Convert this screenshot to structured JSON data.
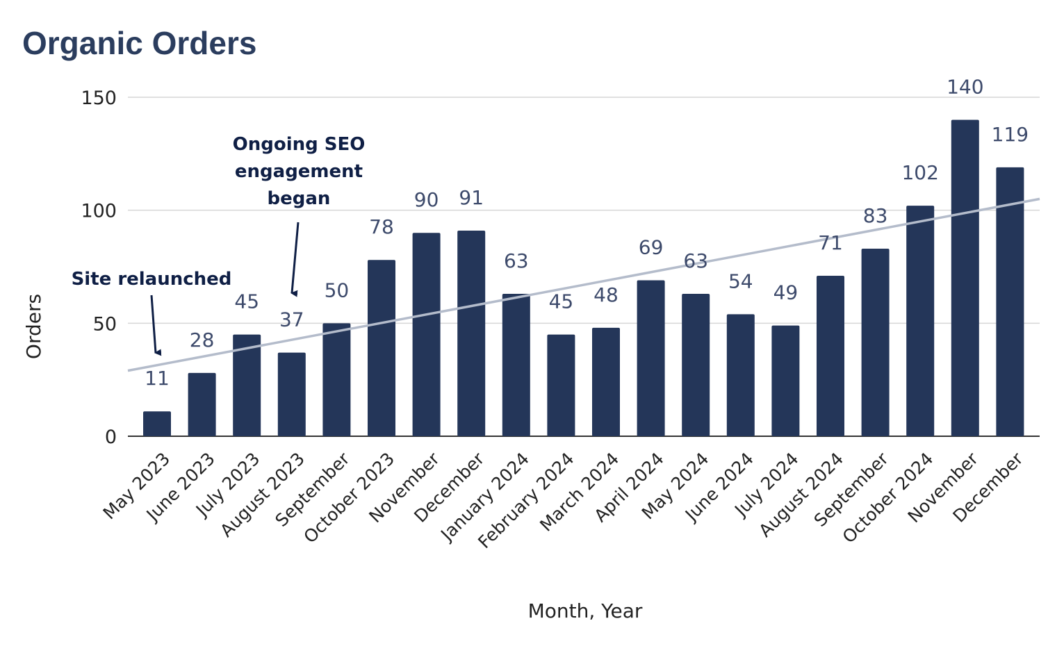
{
  "chart_data": {
    "type": "bar",
    "title": "Organic Orders",
    "xlabel": "Month, Year",
    "ylabel": "Orders",
    "categories": [
      "May 2023",
      "June 2023",
      "July 2023",
      "August 2023",
      "September",
      "October 2023",
      "November",
      "December",
      "January 2024",
      "February 2024",
      "March 2024",
      "April 2024",
      "May 2024",
      "June 2024",
      "July 2024",
      "August 2024",
      "September",
      "October 2024",
      "November",
      "December"
    ],
    "values": [
      11,
      28,
      45,
      37,
      50,
      78,
      90,
      91,
      63,
      45,
      48,
      69,
      63,
      54,
      49,
      71,
      83,
      102,
      140,
      119
    ],
    "yticks": [
      0,
      50,
      100,
      150
    ],
    "ylim": [
      0,
      150
    ],
    "grid": true,
    "legend": "none",
    "trendline": {
      "type": "linear",
      "start": 29,
      "end": 105
    },
    "annotations": [
      {
        "lines": [
          "Site relaunched"
        ],
        "target_category": "May 2023"
      },
      {
        "lines": [
          "Ongoing SEO",
          "engagement",
          "began"
        ],
        "target_category": "August 2023"
      }
    ],
    "colors": {
      "bar": "#243659",
      "trendline": "#b4bccb",
      "grid": "#d6d6d6",
      "title": "#2b3d5e",
      "data_label": "#3d4a6b",
      "annotation": "#0f1f45"
    }
  }
}
